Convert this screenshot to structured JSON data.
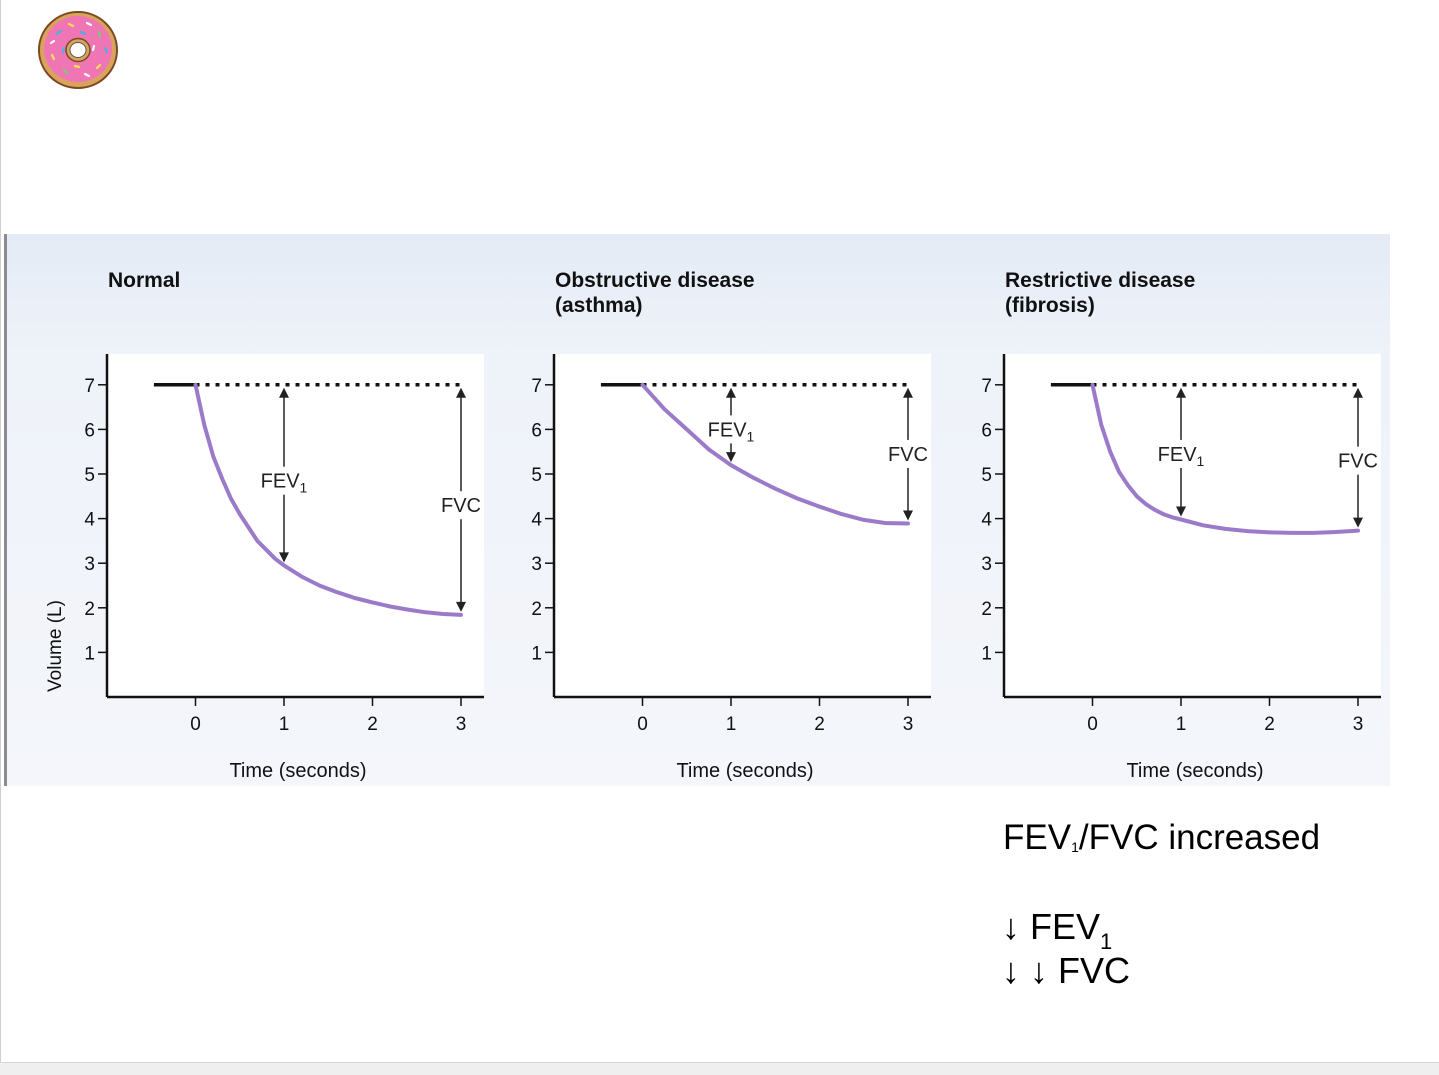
{
  "chart_data": [
    {
      "type": "line",
      "title": "Normal",
      "xlabel": "Time (seconds)",
      "ylabel": "Volume (L)",
      "xlim": [
        -1,
        3.2
      ],
      "ylim": [
        0,
        7.6
      ],
      "x_ticks": [
        "0",
        "1",
        "2",
        "3"
      ],
      "y_ticks": [
        "1",
        "2",
        "3",
        "4",
        "5",
        "6",
        "7"
      ],
      "baseline_value": 7,
      "curve_x": [
        -0.47,
        0,
        0.1,
        0.2,
        0.3,
        0.4,
        0.5,
        0.6,
        0.7,
        0.8,
        0.9,
        1.0,
        1.2,
        1.4,
        1.6,
        1.8,
        2.0,
        2.2,
        2.4,
        2.6,
        2.8,
        3.0
      ],
      "curve_y": [
        7.0,
        7.0,
        6.1,
        5.4,
        4.9,
        4.45,
        4.1,
        3.8,
        3.5,
        3.3,
        3.1,
        2.95,
        2.7,
        2.5,
        2.35,
        2.22,
        2.12,
        2.03,
        1.96,
        1.9,
        1.86,
        1.84
      ],
      "annotations": [
        {
          "name": "FEV",
          "sub": "1",
          "x": 1,
          "from": 7,
          "to": 2.95,
          "label_y": 4.85
        },
        {
          "name": "FVC",
          "sub": "",
          "x": 3,
          "from": 7,
          "to": 1.84,
          "label_y": 4.3
        }
      ]
    },
    {
      "type": "line",
      "title": "Obstructive disease",
      "title_line2": "(asthma)",
      "xlabel": "Time (seconds)",
      "ylabel": "",
      "xlim": [
        -1,
        3.2
      ],
      "ylim": [
        0,
        7.6
      ],
      "x_ticks": [
        "0",
        "1",
        "2",
        "3"
      ],
      "y_ticks": [
        "1",
        "2",
        "3",
        "4",
        "5",
        "6",
        "7"
      ],
      "baseline_value": 7,
      "curve_x": [
        -0.47,
        0,
        0.25,
        0.5,
        0.75,
        1.0,
        1.25,
        1.5,
        1.75,
        2.0,
        2.25,
        2.5,
        2.75,
        3.0
      ],
      "curve_y": [
        7.0,
        7.0,
        6.45,
        6.0,
        5.55,
        5.2,
        4.92,
        4.67,
        4.45,
        4.27,
        4.1,
        3.97,
        3.9,
        3.89
      ],
      "annotations": [
        {
          "name": "FEV",
          "sub": "1",
          "x": 1,
          "from": 7,
          "to": 5.2,
          "label_y": 6.0
        },
        {
          "name": "FVC",
          "sub": "",
          "x": 3,
          "from": 7,
          "to": 3.89,
          "label_y": 5.45
        }
      ]
    },
    {
      "type": "line",
      "title": "Restrictive disease",
      "title_line2": "(fibrosis)",
      "xlabel": "Time (seconds)",
      "ylabel": "",
      "xlim": [
        -1,
        3.2
      ],
      "ylim": [
        0,
        7.6
      ],
      "x_ticks": [
        "0",
        "1",
        "2",
        "3"
      ],
      "y_ticks": [
        "1",
        "2",
        "3",
        "4",
        "5",
        "6",
        "7"
      ],
      "baseline_value": 7,
      "curve_x": [
        -0.47,
        0,
        0.1,
        0.2,
        0.3,
        0.4,
        0.5,
        0.6,
        0.7,
        0.8,
        0.9,
        1.0,
        1.25,
        1.5,
        1.75,
        2.0,
        2.25,
        2.5,
        2.75,
        3.0
      ],
      "curve_y": [
        7.0,
        7.0,
        6.1,
        5.5,
        5.05,
        4.75,
        4.5,
        4.33,
        4.2,
        4.1,
        4.03,
        3.98,
        3.85,
        3.77,
        3.72,
        3.69,
        3.68,
        3.68,
        3.7,
        3.73
      ],
      "annotations": [
        {
          "name": "FEV",
          "sub": "1",
          "x": 1,
          "from": 7,
          "to": 3.98,
          "label_y": 5.45
        },
        {
          "name": "FVC",
          "sub": "",
          "x": 3,
          "from": 7,
          "to": 3.73,
          "label_y": 5.3
        }
      ]
    }
  ],
  "colors": {
    "curve": "#9b7bc9",
    "axis": "#111111",
    "baseline": "#111111"
  },
  "captions": {
    "ratio_prefix": "FEV",
    "ratio_sub": "1",
    "ratio_suffix": "/FVC increased",
    "line1_arrow": "↓",
    "line1_name": "FEV",
    "line1_sub": "1",
    "line2_text": "↓ ↓ FVC"
  },
  "logo": {
    "icon": "donut-icon"
  }
}
